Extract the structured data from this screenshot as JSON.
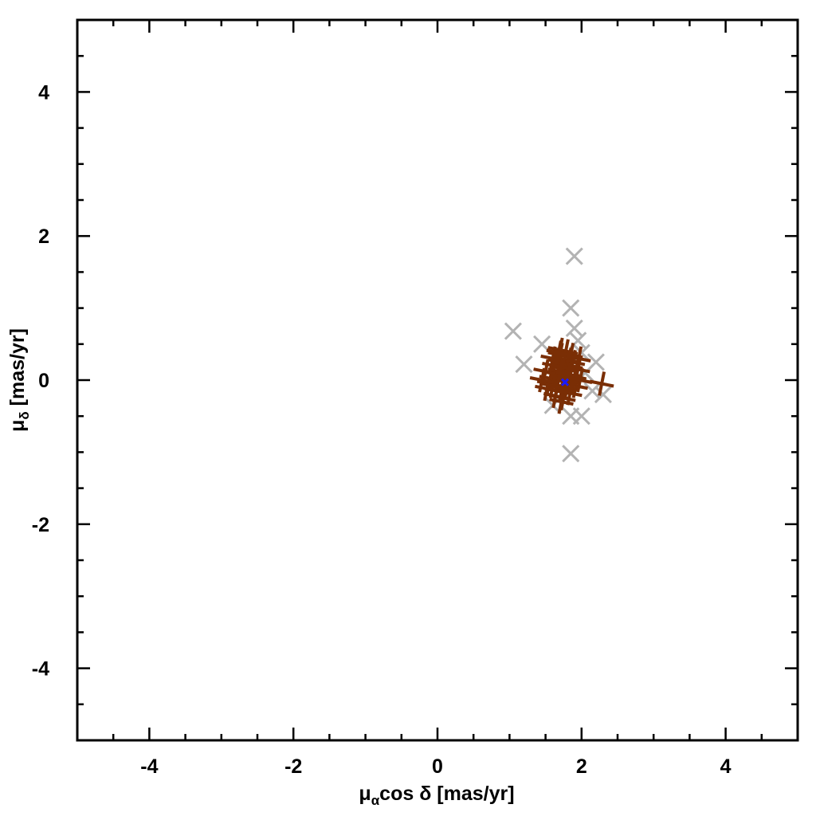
{
  "chart_data": {
    "type": "scatter",
    "xlabel": [
      "μ",
      "α",
      "cos δ [mas/yr]"
    ],
    "ylabel": [
      "μ",
      "δ",
      " [mas/yr]"
    ],
    "xlim": [
      -5,
      5
    ],
    "ylim": [
      -5,
      5
    ],
    "xticks": [
      -4,
      -2,
      0,
      2,
      4
    ],
    "yticks": [
      -4,
      -2,
      0,
      2,
      4
    ],
    "xminorticks": [
      -4.5,
      -3.5,
      -3,
      -2.5,
      -1.5,
      -1,
      -0.5,
      0.5,
      1,
      1.5,
      2.5,
      3,
      3.5,
      4.5
    ],
    "yminorticks": [
      -4.5,
      -3.5,
      -3,
      -2.5,
      -1.5,
      -1,
      -0.5,
      0.5,
      1,
      1.5,
      2.5,
      3,
      3.5,
      4.5
    ],
    "series": [
      {
        "color": "#b3b3b3",
        "marker": "x",
        "x": [
          1.05,
          1.9,
          1.85,
          1.9,
          1.95,
          1.2,
          1.45,
          2.2,
          2.15,
          1.85,
          2.0,
          1.85,
          2.0,
          2.3,
          1.6,
          2.05
        ],
        "values": [
          0.68,
          1.72,
          1.0,
          0.72,
          0.55,
          0.22,
          0.5,
          0.25,
          -0.15,
          -0.5,
          -0.5,
          -1.02,
          0.38,
          -0.2,
          -0.35,
          0.1
        ]
      },
      {
        "color": "#7a2e05",
        "marker": "+",
        "x": [
          1.75,
          1.6,
          1.7,
          1.85,
          1.9,
          1.55,
          1.65,
          1.8,
          1.95,
          1.7,
          1.6,
          1.75,
          1.85,
          1.5,
          1.68,
          1.78,
          1.92,
          1.62,
          1.72,
          1.82,
          1.58,
          1.88,
          1.7,
          1.76,
          1.66,
          1.8,
          1.74,
          1.64,
          1.98,
          1.52,
          1.7,
          1.84,
          1.78,
          1.6,
          1.68,
          2.28,
          1.45,
          1.96,
          1.73,
          1.81
        ],
        "values": [
          0.05,
          0.1,
          0.25,
          0.2,
          0.05,
          -0.05,
          -0.15,
          -0.1,
          0.15,
          0.35,
          0.3,
          -0.25,
          0.35,
          0.12,
          0.0,
          0.15,
          -0.08,
          0.2,
          -0.3,
          0.28,
          0.02,
          0.25,
          0.42,
          -0.02,
          0.08,
          0.0,
          0.18,
          -0.22,
          0.0,
          -0.12,
          0.12,
          -0.18,
          0.4,
          -0.08,
          0.38,
          -0.05,
          0.0,
          0.3,
          -0.12,
          0.08
        ]
      },
      {
        "color": "#1a1aff",
        "marker": "x",
        "x": [
          1.77
        ],
        "values": [
          -0.03
        ]
      }
    ]
  }
}
